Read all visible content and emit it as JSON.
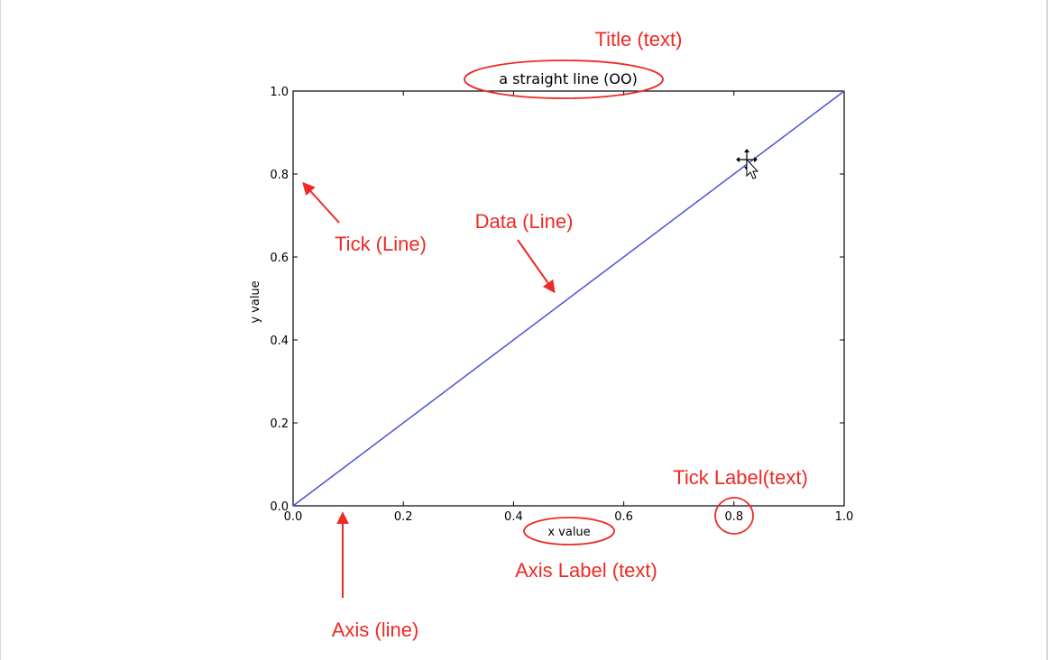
{
  "chart_data": {
    "type": "line",
    "title": "a straight line (OO)",
    "xlabel": "x value",
    "ylabel": "y value",
    "xlim": [
      0.0,
      1.0
    ],
    "ylim": [
      0.0,
      1.0
    ],
    "x_ticks": [
      "0.0",
      "0.2",
      "0.4",
      "0.6",
      "0.8",
      "1.0"
    ],
    "y_ticks": [
      "0.0",
      "0.2",
      "0.4",
      "0.6",
      "0.8",
      "1.0"
    ],
    "series": [
      {
        "x": [
          0.0,
          1.0
        ],
        "y": [
          0.0,
          1.0
        ],
        "color": "#4a52d6"
      }
    ],
    "grid": false
  },
  "annotations": {
    "title": "Title (text)",
    "tick": "Tick (Line)",
    "data": "Data (Line)",
    "tick_label": "Tick Label(text)",
    "axis_label": "Axis Label (text)",
    "axis": "Axis (line)"
  },
  "colors": {
    "annotation": "#ee2a24",
    "data_line": "#4a52d6",
    "axes": "#000000"
  },
  "cursor": "move-cursor-icon"
}
